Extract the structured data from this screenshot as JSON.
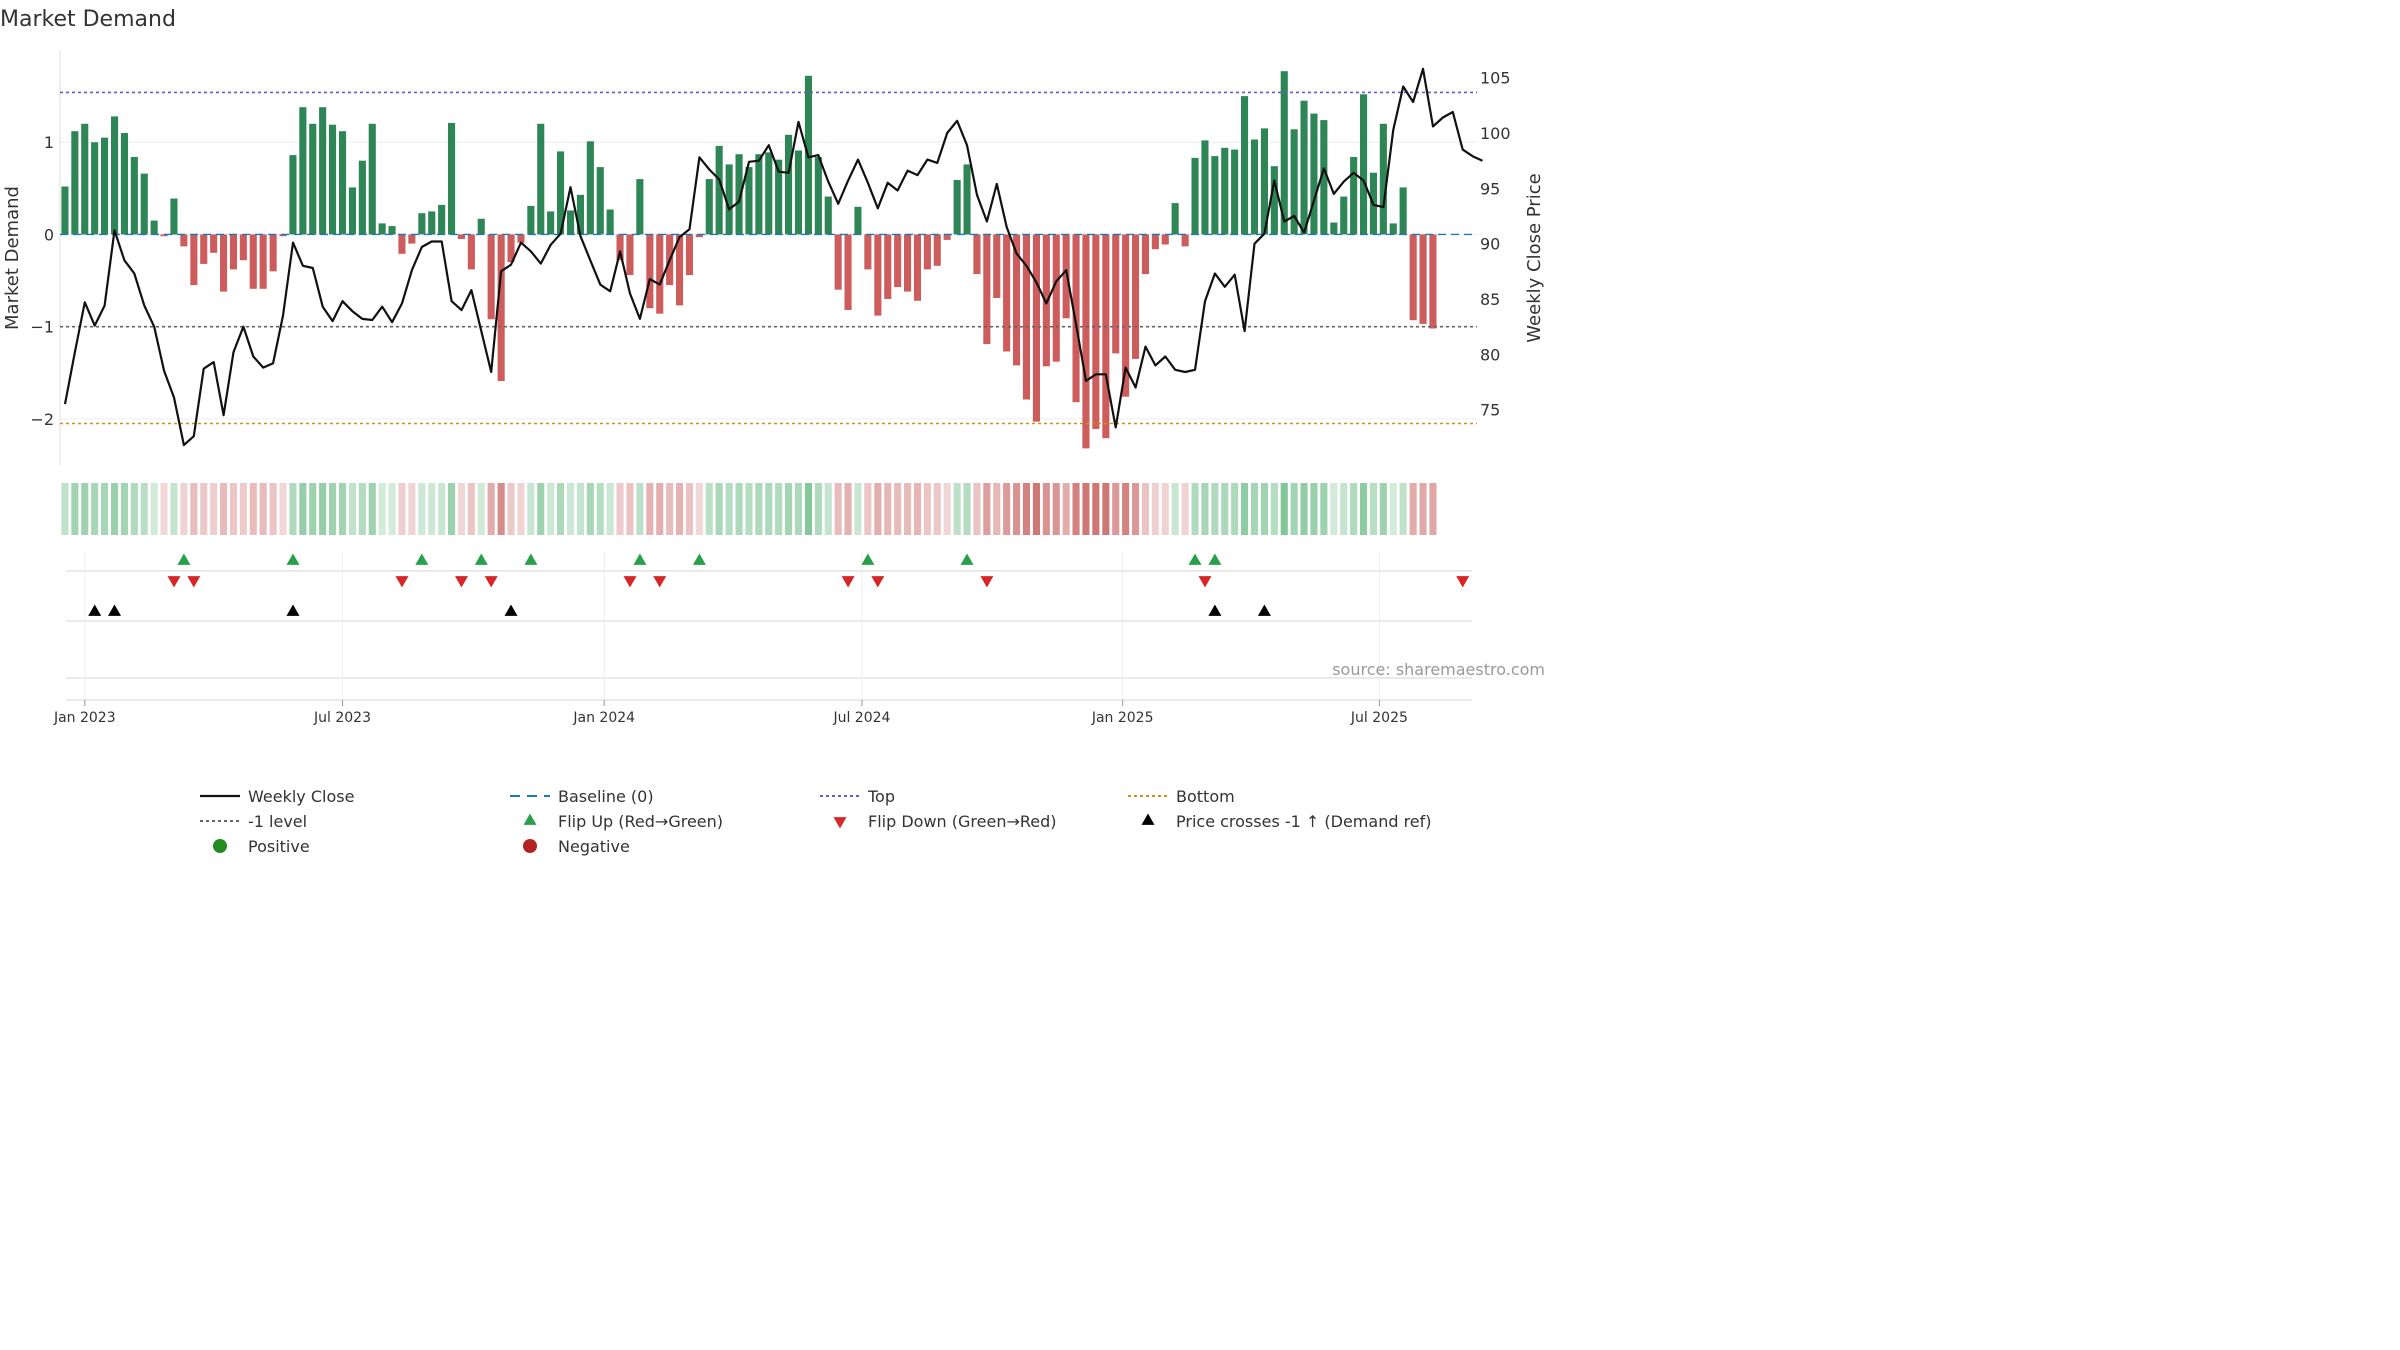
{
  "chart_data": {
    "type": "bar+line",
    "title": "Market Demand",
    "ylabel_left": "Market Demand",
    "ylabel_right": "Weekly Close Price",
    "ylim_left": [
      -2.5,
      2.0
    ],
    "ylim_right": [
      70.0,
      107.5
    ],
    "yticks_left": [
      {
        "v": 1,
        "label": "1"
      },
      {
        "v": 0,
        "label": "0"
      },
      {
        "v": -1,
        "label": "−1"
      },
      {
        "v": -2,
        "label": "−2"
      }
    ],
    "yticks_right": [
      {
        "v": 105,
        "label": "105"
      },
      {
        "v": 100,
        "label": "100"
      },
      {
        "v": 95,
        "label": "95"
      },
      {
        "v": 90,
        "label": "90"
      },
      {
        "v": 85,
        "label": "85"
      },
      {
        "v": 80,
        "label": "80"
      },
      {
        "v": 75,
        "label": "75"
      }
    ],
    "x_start_week": -2,
    "xticks": [
      {
        "week": 0,
        "label": "Jan 2023"
      },
      {
        "week": 26,
        "label": "Jul 2023"
      },
      {
        "week": 52.4,
        "label": "Jan 2024"
      },
      {
        "week": 78.4,
        "label": "Jul 2024"
      },
      {
        "week": 104.7,
        "label": "Jan 2025"
      },
      {
        "week": 130.6,
        "label": "Jul 2025"
      }
    ],
    "reference_lines": {
      "top": 1.54,
      "bottom": -2.05,
      "minus_one": -1.0,
      "baseline": 0
    },
    "demand": [
      0.52,
      1.12,
      1.2,
      1.0,
      1.05,
      1.28,
      1.1,
      0.84,
      0.66,
      0.15,
      -0.02,
      0.39,
      -0.13,
      -0.55,
      -0.32,
      -0.2,
      -0.62,
      -0.38,
      -0.28,
      -0.59,
      -0.59,
      -0.4,
      -0.02,
      0.86,
      1.38,
      1.2,
      1.38,
      1.19,
      1.12,
      0.51,
      0.8,
      1.2,
      0.12,
      0.09,
      -0.21,
      -0.1,
      0.23,
      0.25,
      0.32,
      1.21,
      -0.05,
      -0.38,
      0.17,
      -0.92,
      -1.59,
      -0.3,
      -0.09,
      0.31,
      1.2,
      0.25,
      0.9,
      0.26,
      0.43,
      1.01,
      0.73,
      0.27,
      -0.28,
      -0.44,
      0.6,
      -0.8,
      -0.86,
      -0.55,
      -0.77,
      -0.44,
      -0.03,
      0.6,
      0.96,
      0.76,
      0.87,
      0.73,
      0.87,
      0.89,
      0.81,
      1.08,
      0.91,
      1.72,
      0.84,
      0.41,
      -0.6,
      -0.82,
      0.3,
      -0.38,
      -0.88,
      -0.7,
      -0.57,
      -0.62,
      -0.72,
      -0.38,
      -0.34,
      -0.06,
      0.59,
      0.76,
      -0.43,
      -1.19,
      -0.69,
      -1.27,
      -1.42,
      -1.79,
      -2.03,
      -1.43,
      -1.38,
      -0.91,
      -1.82,
      -2.32,
      -2.11,
      -2.21,
      -1.29,
      -1.76,
      -1.35,
      -0.43,
      -0.16,
      -0.11,
      0.34,
      -0.13,
      0.83,
      1.02,
      0.85,
      0.94,
      0.92,
      1.5,
      1.03,
      1.15,
      0.74,
      1.77,
      1.14,
      1.45,
      1.31,
      1.24,
      0.13,
      0.41,
      0.84,
      1.52,
      0.67,
      1.2,
      0.12,
      0.51,
      -0.93,
      -0.97,
      -1.02
    ],
    "weekly_close": [
      75.5,
      80.2,
      84.7,
      82.6,
      84.4,
      91.2,
      88.5,
      87.3,
      84.4,
      82.5,
      78.5,
      76.1,
      71.8,
      72.6,
      78.7,
      79.3,
      74.5,
      80.2,
      82.5,
      79.8,
      78.8,
      79.2,
      83.5,
      90.1,
      88.0,
      87.8,
      84.3,
      83.0,
      84.8,
      83.9,
      83.2,
      83.1,
      84.3,
      82.9,
      84.6,
      87.6,
      89.7,
      90.2,
      90.2,
      84.8,
      84.0,
      85.8,
      82.1,
      78.4,
      87.5,
      88.1,
      90.1,
      89.3,
      88.2,
      89.9,
      90.9,
      95.1,
      90.7,
      88.5,
      86.3,
      85.7,
      89.3,
      85.5,
      83.2,
      86.8,
      86.3,
      88.5,
      90.6,
      91.3,
      97.8,
      96.7,
      95.8,
      93.1,
      93.8,
      97.4,
      97.5,
      98.9,
      96.5,
      96.4,
      101.0,
      97.8,
      98.0,
      95.6,
      93.6,
      95.7,
      97.6,
      95.5,
      93.2,
      95.5,
      94.8,
      96.6,
      96.2,
      97.6,
      97.3,
      100.0,
      101.1,
      98.9,
      94.4,
      92.0,
      95.4,
      91.5,
      89.1,
      88.0,
      86.5,
      84.6,
      86.6,
      87.6,
      82.7,
      77.6,
      78.2,
      78.2,
      73.4,
      78.8,
      77.0,
      80.7,
      79.0,
      79.8,
      78.6,
      78.4,
      78.6,
      84.8,
      87.3,
      86.1,
      87.2,
      82.1,
      90.0,
      90.9,
      95.7,
      92.0,
      92.5,
      91.0,
      93.9,
      96.8,
      94.5,
      95.6,
      96.4,
      95.7,
      93.5,
      93.3,
      100.3,
      104.2,
      102.8,
      105.8,
      100.6,
      101.4,
      101.9,
      98.5,
      97.9,
      97.5
    ],
    "flip_up_weeks": [
      10,
      21,
      34,
      40,
      45,
      56,
      62,
      79,
      89,
      112,
      114
    ],
    "flip_down_weeks": [
      9,
      11,
      32,
      38,
      41,
      55,
      58,
      77,
      80,
      91,
      113,
      139
    ],
    "price_cross_weeks": [
      1,
      3,
      21,
      43,
      114,
      119
    ],
    "source_text": "source: sharemaestro.com",
    "legend": [
      {
        "key": "weekly_close",
        "label": "Weekly Close"
      },
      {
        "key": "baseline",
        "label": "Baseline (0)"
      },
      {
        "key": "top",
        "label": "Top"
      },
      {
        "key": "bottom",
        "label": "Bottom"
      },
      {
        "key": "minus_one",
        "label": "-1 level"
      },
      {
        "key": "flip_up",
        "label": "Flip Up (Red→Green)"
      },
      {
        "key": "flip_down",
        "label": "Flip Down (Green→Red)"
      },
      {
        "key": "price_cross",
        "label": "Price crosses -1 ↑ (Demand ref)"
      },
      {
        "key": "positive",
        "label": "Positive"
      },
      {
        "key": "negative",
        "label": "Negative"
      }
    ]
  },
  "colors": {
    "positive": "#2e8555",
    "negative": "#cd5c5c",
    "line": "#111111",
    "top": "#6a5acd",
    "bottom": "#d18e1f",
    "minus_one": "#666666",
    "baseline": "#1f77b4",
    "flip_up": "#28a04a",
    "flip_down": "#d62728",
    "price_cross": "#000000",
    "positive_dot": "#228b22",
    "negative_dot": "#b22222",
    "axis": "#cccccc",
    "text": "#333333"
  }
}
